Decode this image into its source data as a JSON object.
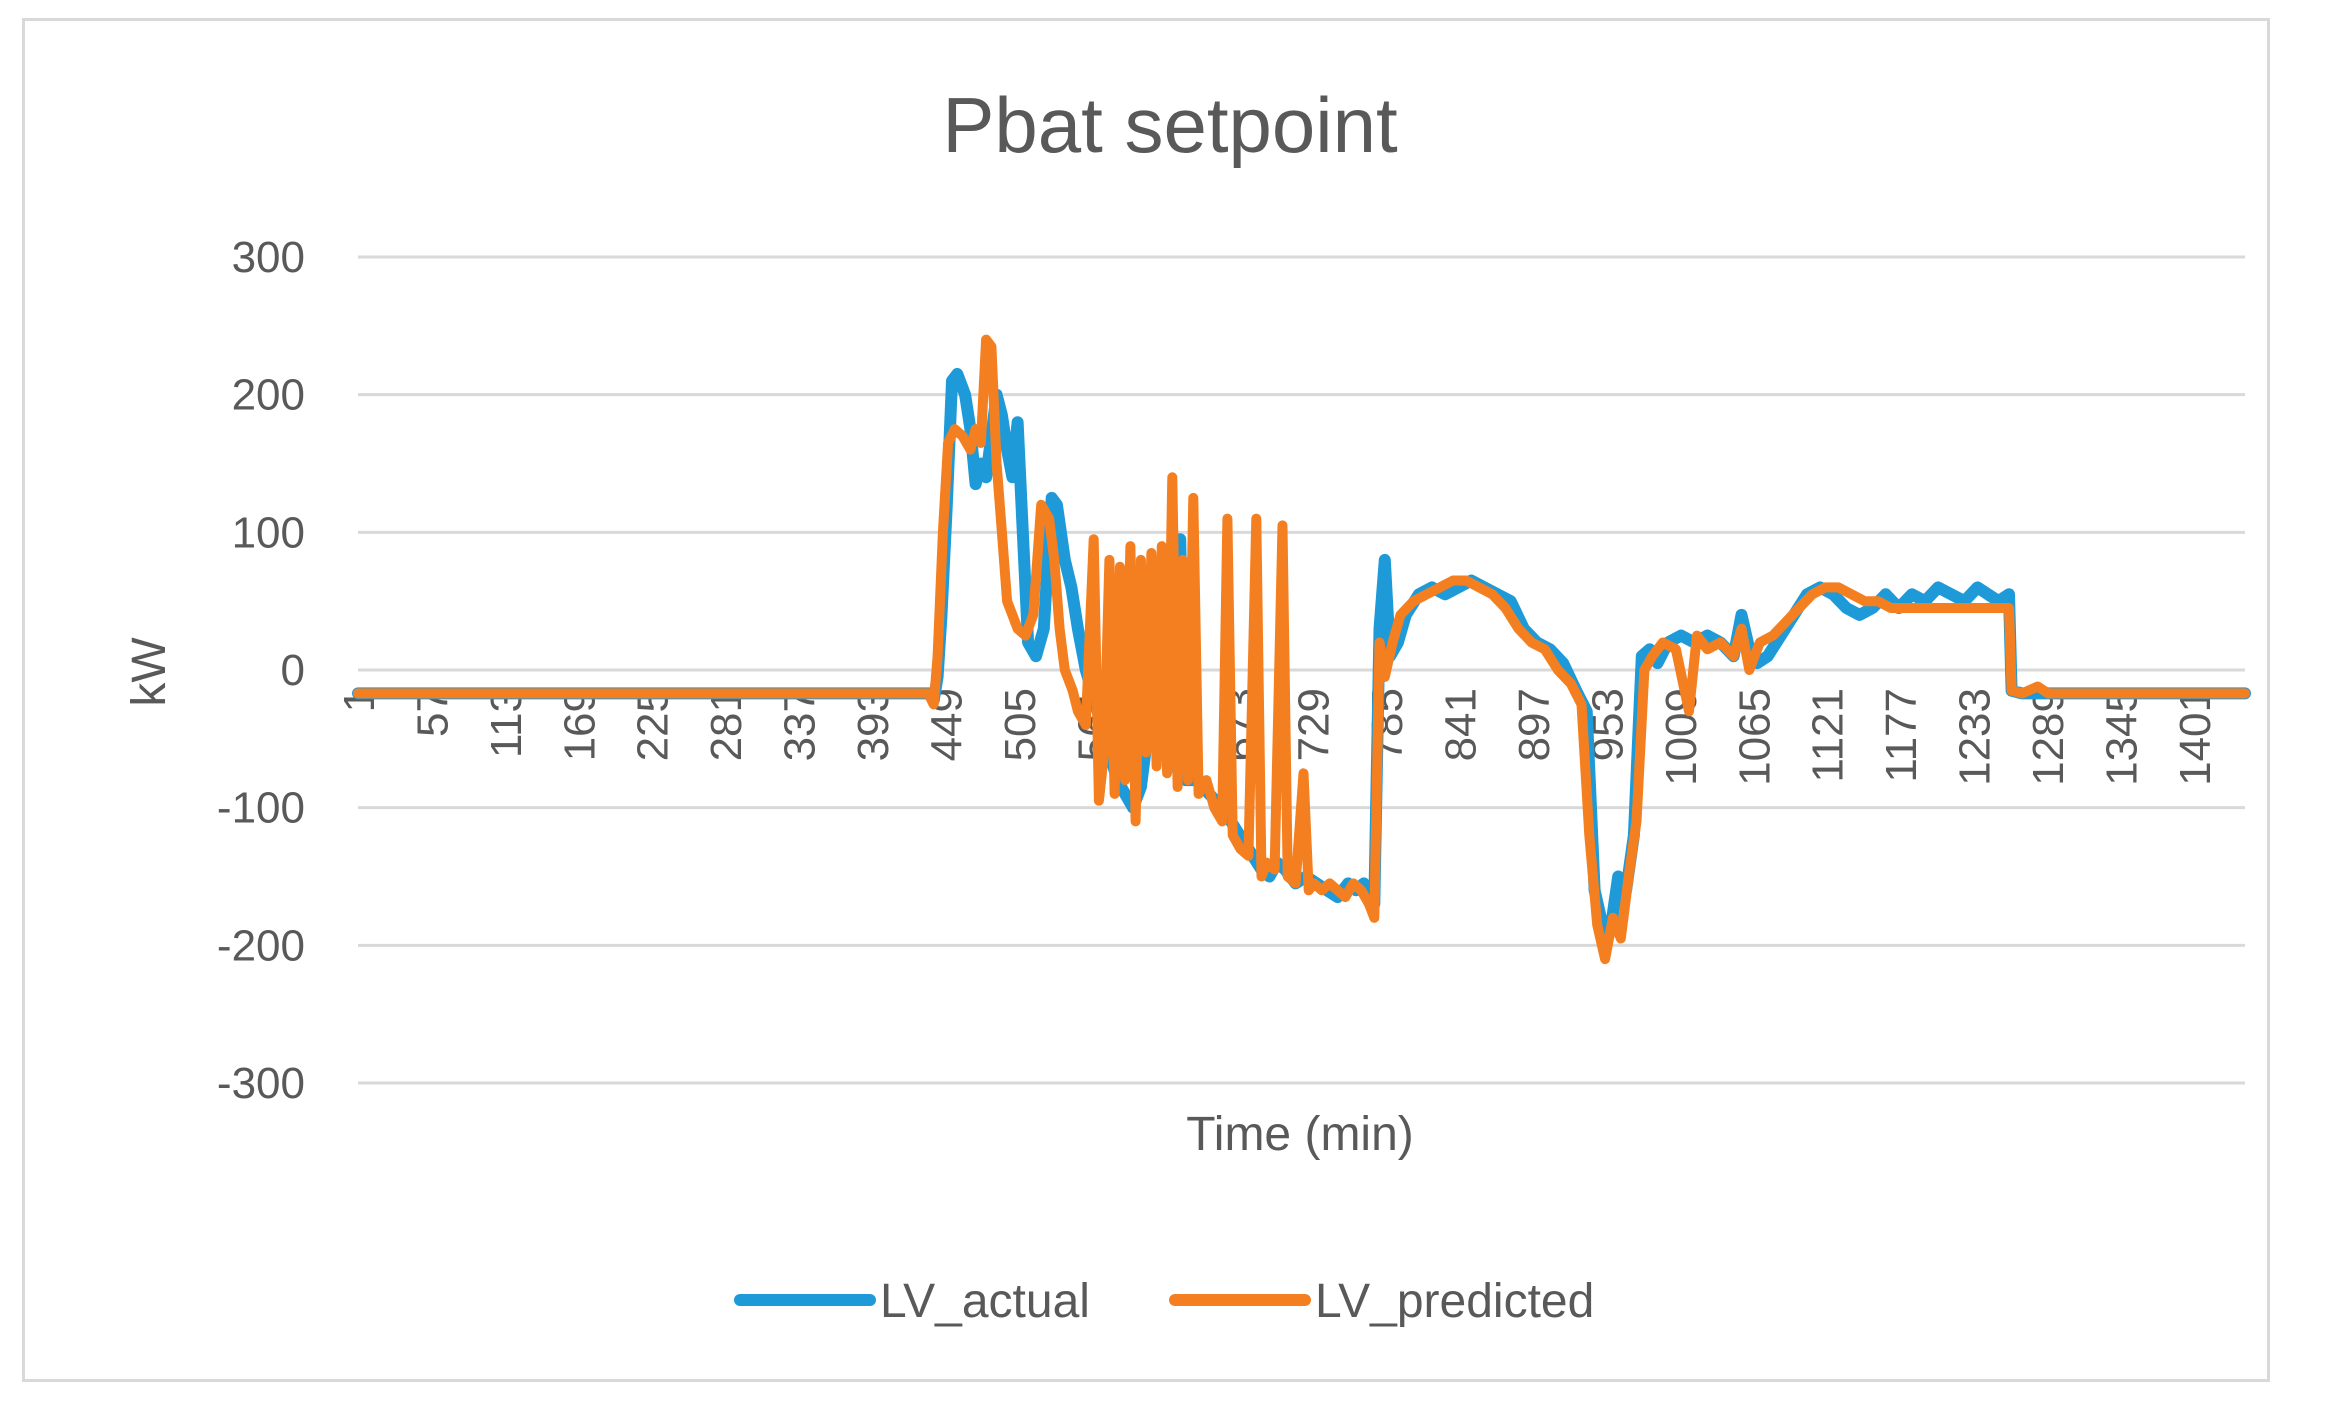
{
  "chart_data": {
    "type": "line",
    "title": "Pbat setpoint",
    "xlabel": "Time (min)",
    "ylabel": "kW",
    "ylim": [
      -300,
      300
    ],
    "yticks": [
      300,
      200,
      100,
      0,
      -100,
      -200,
      -300
    ],
    "xlim": [
      1,
      1440
    ],
    "xticks": [
      1,
      57,
      113,
      169,
      225,
      281,
      337,
      393,
      449,
      505,
      561,
      617,
      673,
      729,
      785,
      841,
      897,
      953,
      1009,
      1065,
      1121,
      1177,
      1233,
      1289,
      1345,
      1401
    ],
    "grid": true,
    "legend_position": "bottom",
    "series": [
      {
        "name": "LV_actual",
        "color": "#1f9ad8",
        "points": [
          [
            1,
            -17
          ],
          [
            436,
            -17
          ],
          [
            440,
            -22
          ],
          [
            443,
            -5
          ],
          [
            446,
            40
          ],
          [
            450,
            120
          ],
          [
            454,
            210
          ],
          [
            458,
            215
          ],
          [
            464,
            200
          ],
          [
            468,
            175
          ],
          [
            472,
            135
          ],
          [
            476,
            150
          ],
          [
            480,
            140
          ],
          [
            484,
            170
          ],
          [
            488,
            200
          ],
          [
            492,
            185
          ],
          [
            496,
            160
          ],
          [
            500,
            140
          ],
          [
            504,
            180
          ],
          [
            508,
            100
          ],
          [
            512,
            20
          ],
          [
            518,
            10
          ],
          [
            524,
            30
          ],
          [
            530,
            125
          ],
          [
            534,
            120
          ],
          [
            540,
            80
          ],
          [
            545,
            60
          ],
          [
            550,
            30
          ],
          [
            556,
            0
          ],
          [
            562,
            -20
          ],
          [
            568,
            -40
          ],
          [
            574,
            -60
          ],
          [
            580,
            -80
          ],
          [
            586,
            -90
          ],
          [
            592,
            -100
          ],
          [
            598,
            -85
          ],
          [
            604,
            -40
          ],
          [
            610,
            -50
          ],
          [
            616,
            -60
          ],
          [
            622,
            -70
          ],
          [
            628,
            95
          ],
          [
            632,
            -80
          ],
          [
            640,
            -80
          ],
          [
            650,
            -90
          ],
          [
            660,
            -100
          ],
          [
            670,
            -115
          ],
          [
            680,
            -130
          ],
          [
            690,
            -145
          ],
          [
            696,
            -150
          ],
          [
            702,
            -140
          ],
          [
            708,
            -145
          ],
          [
            716,
            -155
          ],
          [
            724,
            -150
          ],
          [
            732,
            -155
          ],
          [
            740,
            -160
          ],
          [
            748,
            -165
          ],
          [
            756,
            -155
          ],
          [
            762,
            -160
          ],
          [
            768,
            -155
          ],
          [
            772,
            -165
          ],
          [
            776,
            -170
          ],
          [
            780,
            30
          ],
          [
            784,
            80
          ],
          [
            788,
            10
          ],
          [
            794,
            20
          ],
          [
            800,
            40
          ],
          [
            810,
            55
          ],
          [
            820,
            60
          ],
          [
            830,
            55
          ],
          [
            840,
            60
          ],
          [
            850,
            65
          ],
          [
            860,
            60
          ],
          [
            870,
            55
          ],
          [
            880,
            50
          ],
          [
            890,
            30
          ],
          [
            900,
            20
          ],
          [
            910,
            15
          ],
          [
            920,
            5
          ],
          [
            930,
            -15
          ],
          [
            938,
            -30
          ],
          [
            944,
            -160
          ],
          [
            950,
            -185
          ],
          [
            956,
            -190
          ],
          [
            962,
            -150
          ],
          [
            968,
            -160
          ],
          [
            974,
            -120
          ],
          [
            980,
            10
          ],
          [
            986,
            15
          ],
          [
            992,
            5
          ],
          [
            1000,
            20
          ],
          [
            1010,
            25
          ],
          [
            1020,
            20
          ],
          [
            1030,
            25
          ],
          [
            1040,
            20
          ],
          [
            1050,
            10
          ],
          [
            1056,
            40
          ],
          [
            1062,
            15
          ],
          [
            1068,
            5
          ],
          [
            1076,
            10
          ],
          [
            1086,
            25
          ],
          [
            1096,
            40
          ],
          [
            1106,
            55
          ],
          [
            1116,
            60
          ],
          [
            1126,
            55
          ],
          [
            1136,
            45
          ],
          [
            1146,
            40
          ],
          [
            1156,
            45
          ],
          [
            1166,
            55
          ],
          [
            1176,
            45
          ],
          [
            1186,
            55
          ],
          [
            1196,
            50
          ],
          [
            1206,
            60
          ],
          [
            1216,
            55
          ],
          [
            1226,
            50
          ],
          [
            1236,
            60
          ],
          [
            1244,
            55
          ],
          [
            1252,
            50
          ],
          [
            1260,
            55
          ],
          [
            1262,
            -15
          ],
          [
            1270,
            -17
          ],
          [
            1440,
            -17
          ]
        ]
      },
      {
        "name": "LV_predicted",
        "color": "#f47f20",
        "points": [
          [
            1,
            -17
          ],
          [
            436,
            -17
          ],
          [
            440,
            -25
          ],
          [
            443,
            10
          ],
          [
            447,
            100
          ],
          [
            451,
            165
          ],
          [
            456,
            175
          ],
          [
            462,
            170
          ],
          [
            468,
            160
          ],
          [
            472,
            175
          ],
          [
            476,
            165
          ],
          [
            480,
            240
          ],
          [
            484,
            235
          ],
          [
            488,
            150
          ],
          [
            492,
            100
          ],
          [
            496,
            50
          ],
          [
            500,
            40
          ],
          [
            504,
            30
          ],
          [
            510,
            25
          ],
          [
            516,
            40
          ],
          [
            522,
            120
          ],
          [
            528,
            110
          ],
          [
            532,
            80
          ],
          [
            536,
            30
          ],
          [
            540,
            0
          ],
          [
            546,
            -15
          ],
          [
            550,
            -30
          ],
          [
            556,
            -40
          ],
          [
            562,
            95
          ],
          [
            566,
            -95
          ],
          [
            570,
            -60
          ],
          [
            574,
            80
          ],
          [
            578,
            -90
          ],
          [
            582,
            75
          ],
          [
            586,
            -80
          ],
          [
            590,
            90
          ],
          [
            594,
            -110
          ],
          [
            598,
            80
          ],
          [
            602,
            -60
          ],
          [
            606,
            85
          ],
          [
            610,
            -70
          ],
          [
            614,
            90
          ],
          [
            618,
            -75
          ],
          [
            622,
            140
          ],
          [
            626,
            -85
          ],
          [
            630,
            80
          ],
          [
            634,
            -80
          ],
          [
            638,
            125
          ],
          [
            642,
            -90
          ],
          [
            648,
            -80
          ],
          [
            654,
            -100
          ],
          [
            660,
            -110
          ],
          [
            664,
            110
          ],
          [
            668,
            -120
          ],
          [
            674,
            -130
          ],
          [
            680,
            -135
          ],
          [
            686,
            110
          ],
          [
            690,
            -150
          ],
          [
            694,
            -140
          ],
          [
            700,
            -145
          ],
          [
            706,
            105
          ],
          [
            710,
            -150
          ],
          [
            716,
            -155
          ],
          [
            722,
            -75
          ],
          [
            726,
            -160
          ],
          [
            730,
            -155
          ],
          [
            736,
            -160
          ],
          [
            742,
            -155
          ],
          [
            748,
            -160
          ],
          [
            754,
            -165
          ],
          [
            760,
            -155
          ],
          [
            766,
            -160
          ],
          [
            772,
            -170
          ],
          [
            776,
            -180
          ],
          [
            780,
            20
          ],
          [
            784,
            -5
          ],
          [
            790,
            20
          ],
          [
            796,
            40
          ],
          [
            806,
            50
          ],
          [
            816,
            55
          ],
          [
            826,
            60
          ],
          [
            836,
            65
          ],
          [
            846,
            65
          ],
          [
            856,
            60
          ],
          [
            866,
            55
          ],
          [
            876,
            45
          ],
          [
            886,
            30
          ],
          [
            896,
            20
          ],
          [
            906,
            15
          ],
          [
            916,
            0
          ],
          [
            926,
            -10
          ],
          [
            934,
            -25
          ],
          [
            940,
            -120
          ],
          [
            946,
            -185
          ],
          [
            952,
            -210
          ],
          [
            958,
            -180
          ],
          [
            964,
            -195
          ],
          [
            970,
            -150
          ],
          [
            976,
            -110
          ],
          [
            982,
            0
          ],
          [
            988,
            10
          ],
          [
            996,
            20
          ],
          [
            1006,
            15
          ],
          [
            1016,
            -30
          ],
          [
            1022,
            25
          ],
          [
            1030,
            15
          ],
          [
            1040,
            20
          ],
          [
            1050,
            10
          ],
          [
            1056,
            30
          ],
          [
            1062,
            0
          ],
          [
            1070,
            20
          ],
          [
            1080,
            25
          ],
          [
            1090,
            35
          ],
          [
            1100,
            45
          ],
          [
            1110,
            55
          ],
          [
            1120,
            60
          ],
          [
            1130,
            60
          ],
          [
            1140,
            55
          ],
          [
            1150,
            50
          ],
          [
            1160,
            50
          ],
          [
            1170,
            45
          ],
          [
            1180,
            45
          ],
          [
            1190,
            45
          ],
          [
            1200,
            45
          ],
          [
            1210,
            45
          ],
          [
            1220,
            45
          ],
          [
            1230,
            45
          ],
          [
            1240,
            45
          ],
          [
            1250,
            45
          ],
          [
            1260,
            45
          ],
          [
            1262,
            -15
          ],
          [
            1270,
            -17
          ],
          [
            1282,
            -12
          ],
          [
            1290,
            -17
          ],
          [
            1440,
            -17
          ]
        ]
      }
    ]
  }
}
